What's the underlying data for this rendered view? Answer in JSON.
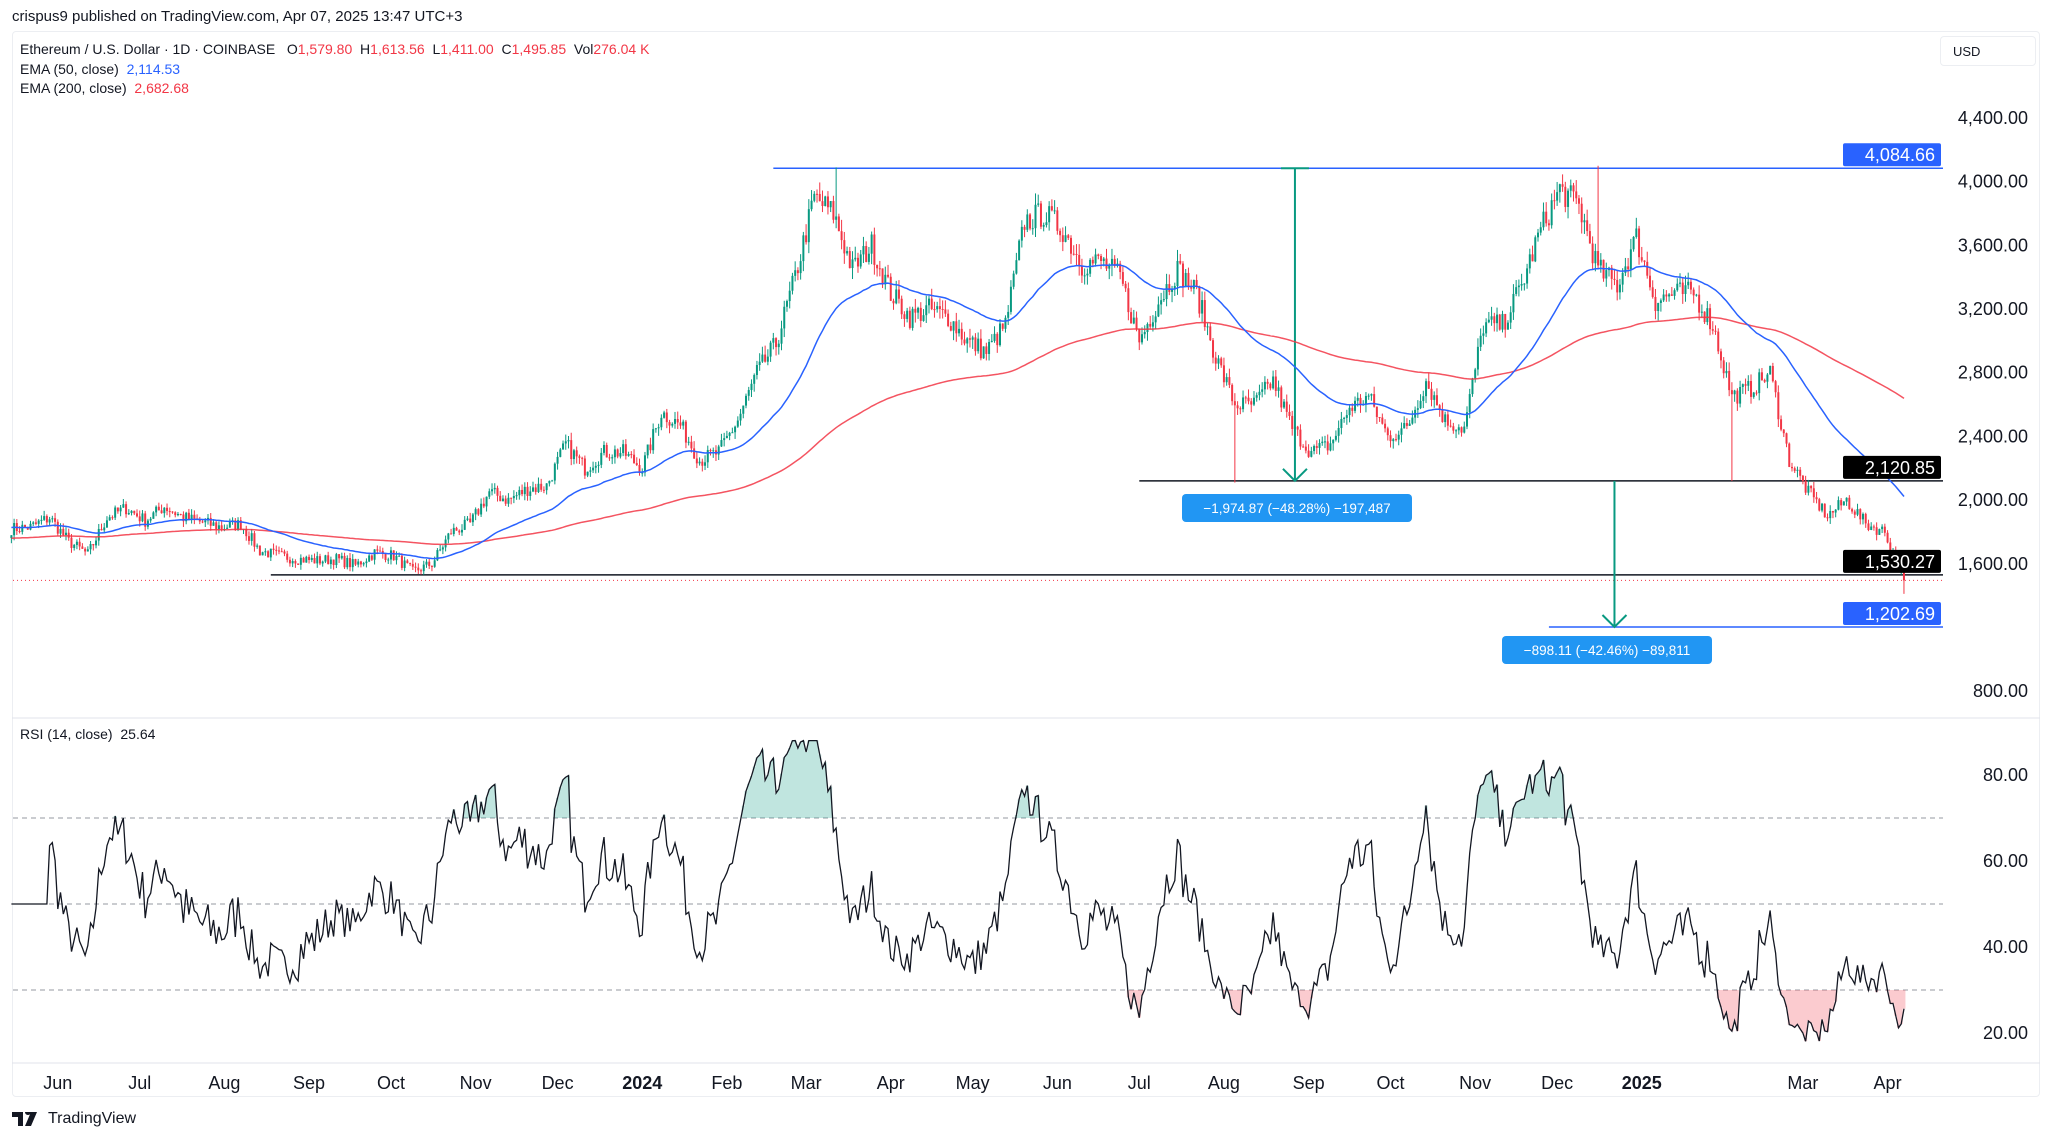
{
  "publisher_line": "crispus9 published on TradingView.com, Apr 07, 2025 13:47 UTC+3",
  "legend": {
    "symbol": "Ethereum / U.S. Dollar · 1D · COINBASE",
    "o_label": "O",
    "o": "1,579.80",
    "h_label": "H",
    "h": "1,613.56",
    "l_label": "L",
    "l": "1,411.00",
    "c_label": "C",
    "c": "1,495.85",
    "vol_label": "Vol",
    "vol": "276.04 K",
    "ema50_label": "EMA (50, close)",
    "ema50": "2,114.53",
    "ema200_label": "EMA (200, close)",
    "ema200": "2,682.68"
  },
  "currency": "USD",
  "rsi_legend": {
    "label": "RSI (14, close)",
    "value": "25.64"
  },
  "footer_brand": "TradingView",
  "measurements": [
    {
      "text": "−1,974.87 (−48.28%) −197,487",
      "from": 4084.66,
      "to": 2120.85,
      "date": "2024-08-27"
    },
    {
      "text": "−898.11 (−42.46%) −89,811",
      "from": 2120.85,
      "to": 1202.69,
      "date": "2024-12-22"
    }
  ],
  "colors": {
    "up": "#089981",
    "down": "#f23645",
    "ema50": "#2962ff",
    "ema200": "#f23645",
    "line_blue": "#2962ff",
    "line_black": "#131722",
    "measure": "#089981"
  },
  "chart_data": [
    {
      "type": "candlestick",
      "title": "Ethereum / U.S. Dollar · 1D · COINBASE",
      "ylim": [
        700,
        4550
      ],
      "y_ticks": [
        4400,
        4000,
        3600,
        3200,
        2800,
        2400,
        2000,
        1600,
        800
      ],
      "y_tick_labels": [
        "4,400.00",
        "4,000.00",
        "3,600.00",
        "3,200.00",
        "2,800.00",
        "2,400.00",
        "2,000.00",
        "1,600.00",
        "800.00"
      ],
      "x_ticks": [
        {
          "label": "Jun",
          "date": "2023-06-01"
        },
        {
          "label": "Jul",
          "date": "2023-07-01"
        },
        {
          "label": "Aug",
          "date": "2023-08-01"
        },
        {
          "label": "Sep",
          "date": "2023-09-01"
        },
        {
          "label": "Oct",
          "date": "2023-10-01"
        },
        {
          "label": "Nov",
          "date": "2023-11-01"
        },
        {
          "label": "Dec",
          "date": "2023-12-01"
        },
        {
          "label": "2024",
          "date": "2024-01-01",
          "bold": true
        },
        {
          "label": "Feb",
          "date": "2024-02-01"
        },
        {
          "label": "Mar",
          "date": "2024-03-01"
        },
        {
          "label": "Apr",
          "date": "2024-04-01"
        },
        {
          "label": "May",
          "date": "2024-05-01"
        },
        {
          "label": "Jun",
          "date": "2024-06-01"
        },
        {
          "label": "Jul",
          "date": "2024-07-01"
        },
        {
          "label": "Aug",
          "date": "2024-08-01"
        },
        {
          "label": "Sep",
          "date": "2024-09-01"
        },
        {
          "label": "Oct",
          "date": "2024-10-01"
        },
        {
          "label": "Nov",
          "date": "2024-11-01"
        },
        {
          "label": "Dec",
          "date": "2024-12-01"
        },
        {
          "label": "2025",
          "date": "2025-01-01",
          "bold": true
        },
        {
          "label": "Mar",
          "date": "2025-03-01"
        },
        {
          "label": "Apr",
          "date": "2025-04-01"
        }
      ],
      "weekly_close": [
        [
          "2023-05-15",
          1820
        ],
        [
          "2023-05-22",
          1830
        ],
        [
          "2023-05-29",
          1890
        ],
        [
          "2023-06-05",
          1740
        ],
        [
          "2023-06-12",
          1660
        ],
        [
          "2023-06-19",
          1890
        ],
        [
          "2023-06-26",
          1950
        ],
        [
          "2023-07-03",
          1870
        ],
        [
          "2023-07-10",
          1960
        ],
        [
          "2023-07-17",
          1890
        ],
        [
          "2023-07-24",
          1860
        ],
        [
          "2023-07-31",
          1830
        ],
        [
          "2023-08-07",
          1850
        ],
        [
          "2023-08-14",
          1680
        ],
        [
          "2023-08-21",
          1650
        ],
        [
          "2023-08-28",
          1630
        ],
        [
          "2023-09-04",
          1620
        ],
        [
          "2023-09-11",
          1630
        ],
        [
          "2023-09-18",
          1590
        ],
        [
          "2023-09-25",
          1670
        ],
        [
          "2023-10-02",
          1650
        ],
        [
          "2023-10-09",
          1550
        ],
        [
          "2023-10-16",
          1600
        ],
        [
          "2023-10-23",
          1800
        ],
        [
          "2023-10-30",
          1850
        ],
        [
          "2023-11-06",
          2050
        ],
        [
          "2023-11-13",
          2000
        ],
        [
          "2023-11-20",
          2070
        ],
        [
          "2023-11-27",
          2090
        ],
        [
          "2023-12-04",
          2350
        ],
        [
          "2023-12-11",
          2200
        ],
        [
          "2023-12-18",
          2300
        ],
        [
          "2023-12-25",
          2300
        ],
        [
          "2024-01-01",
          2200
        ],
        [
          "2024-01-08",
          2550
        ],
        [
          "2024-01-15",
          2470
        ],
        [
          "2024-01-22",
          2250
        ],
        [
          "2024-01-29",
          2300
        ],
        [
          "2024-02-05",
          2500
        ],
        [
          "2024-02-12",
          2800
        ],
        [
          "2024-02-19",
          2980
        ],
        [
          "2024-02-26",
          3400
        ],
        [
          "2024-03-04",
          3900
        ],
        [
          "2024-03-11",
          3800
        ],
        [
          "2024-03-18",
          3450
        ],
        [
          "2024-03-25",
          3600
        ],
        [
          "2024-04-01",
          3300
        ],
        [
          "2024-04-08",
          3150
        ],
        [
          "2024-04-15",
          3200
        ],
        [
          "2024-04-22",
          3150
        ],
        [
          "2024-04-29",
          3000
        ],
        [
          "2024-05-06",
          2930
        ],
        [
          "2024-05-13",
          3100
        ],
        [
          "2024-05-20",
          3750
        ],
        [
          "2024-05-27",
          3800
        ],
        [
          "2024-06-03",
          3700
        ],
        [
          "2024-06-10",
          3480
        ],
        [
          "2024-06-17",
          3500
        ],
        [
          "2024-06-24",
          3400
        ],
        [
          "2024-07-01",
          3000
        ],
        [
          "2024-07-08",
          3250
        ],
        [
          "2024-07-15",
          3450
        ],
        [
          "2024-07-22",
          3300
        ],
        [
          "2024-07-29",
          2900
        ],
        [
          "2024-08-05",
          2600
        ],
        [
          "2024-08-12",
          2600
        ],
        [
          "2024-08-19",
          2750
        ],
        [
          "2024-08-26",
          2450
        ],
        [
          "2024-09-02",
          2300
        ],
        [
          "2024-09-09",
          2350
        ],
        [
          "2024-09-16",
          2580
        ],
        [
          "2024-09-23",
          2650
        ],
        [
          "2024-09-30",
          2400
        ],
        [
          "2024-10-07",
          2450
        ],
        [
          "2024-10-14",
          2750
        ],
        [
          "2024-10-21",
          2500
        ],
        [
          "2024-10-28",
          2450
        ],
        [
          "2024-11-04",
          3100
        ],
        [
          "2024-11-11",
          3100
        ],
        [
          "2024-11-18",
          3350
        ],
        [
          "2024-11-25",
          3700
        ],
        [
          "2024-12-02",
          3950
        ],
        [
          "2024-12-09",
          3850
        ],
        [
          "2024-12-16",
          3450
        ],
        [
          "2024-12-23",
          3350
        ],
        [
          "2024-12-30",
          3650
        ],
        [
          "2025-01-06",
          3250
        ],
        [
          "2025-01-13",
          3300
        ],
        [
          "2025-01-20",
          3300
        ],
        [
          "2025-01-27",
          3100
        ],
        [
          "2025-02-03",
          2650
        ],
        [
          "2025-02-10",
          2700
        ],
        [
          "2025-02-17",
          2800
        ],
        [
          "2025-02-24",
          2250
        ],
        [
          "2025-03-03",
          2050
        ],
        [
          "2025-03-10",
          1900
        ],
        [
          "2025-03-17",
          2000
        ],
        [
          "2025-03-24",
          1850
        ],
        [
          "2025-03-31",
          1800
        ],
        [
          "2025-04-07",
          1495.85
        ]
      ],
      "notable_lows": [
        [
          "2024-08-05",
          2110
        ],
        [
          "2025-02-03",
          2120
        ]
      ],
      "notable_highs": [
        [
          "2024-03-12",
          4090
        ],
        [
          "2024-12-16",
          4100
        ]
      ],
      "series": [
        {
          "name": "EMA (50, close)"
        },
        {
          "name": "EMA (200, close)"
        }
      ],
      "horizontal_lines": [
        {
          "value": 4084.66,
          "label": "4,084.66",
          "color": "#2962ff",
          "from_date": "2024-02-18"
        },
        {
          "value": 2120.85,
          "label": "2,120.85",
          "color": "#131722",
          "from_date": "2024-07-01"
        },
        {
          "value": 1530.27,
          "label": "1,530.27",
          "color": "#131722",
          "from_date": "2023-08-18"
        },
        {
          "value": 1202.69,
          "label": "1,202.69",
          "color": "#2962ff",
          "from_date": "2024-11-28"
        }
      ],
      "last_price": 1495.85
    },
    {
      "type": "line",
      "title": "RSI (14, close)",
      "ylim": [
        14,
        90
      ],
      "y_ticks": [
        80,
        60,
        40,
        20
      ],
      "y_tick_labels": [
        "80.00",
        "60.00",
        "40.00",
        "20.00"
      ],
      "bands": [
        70,
        50,
        30
      ],
      "last_value": 25.64
    }
  ]
}
